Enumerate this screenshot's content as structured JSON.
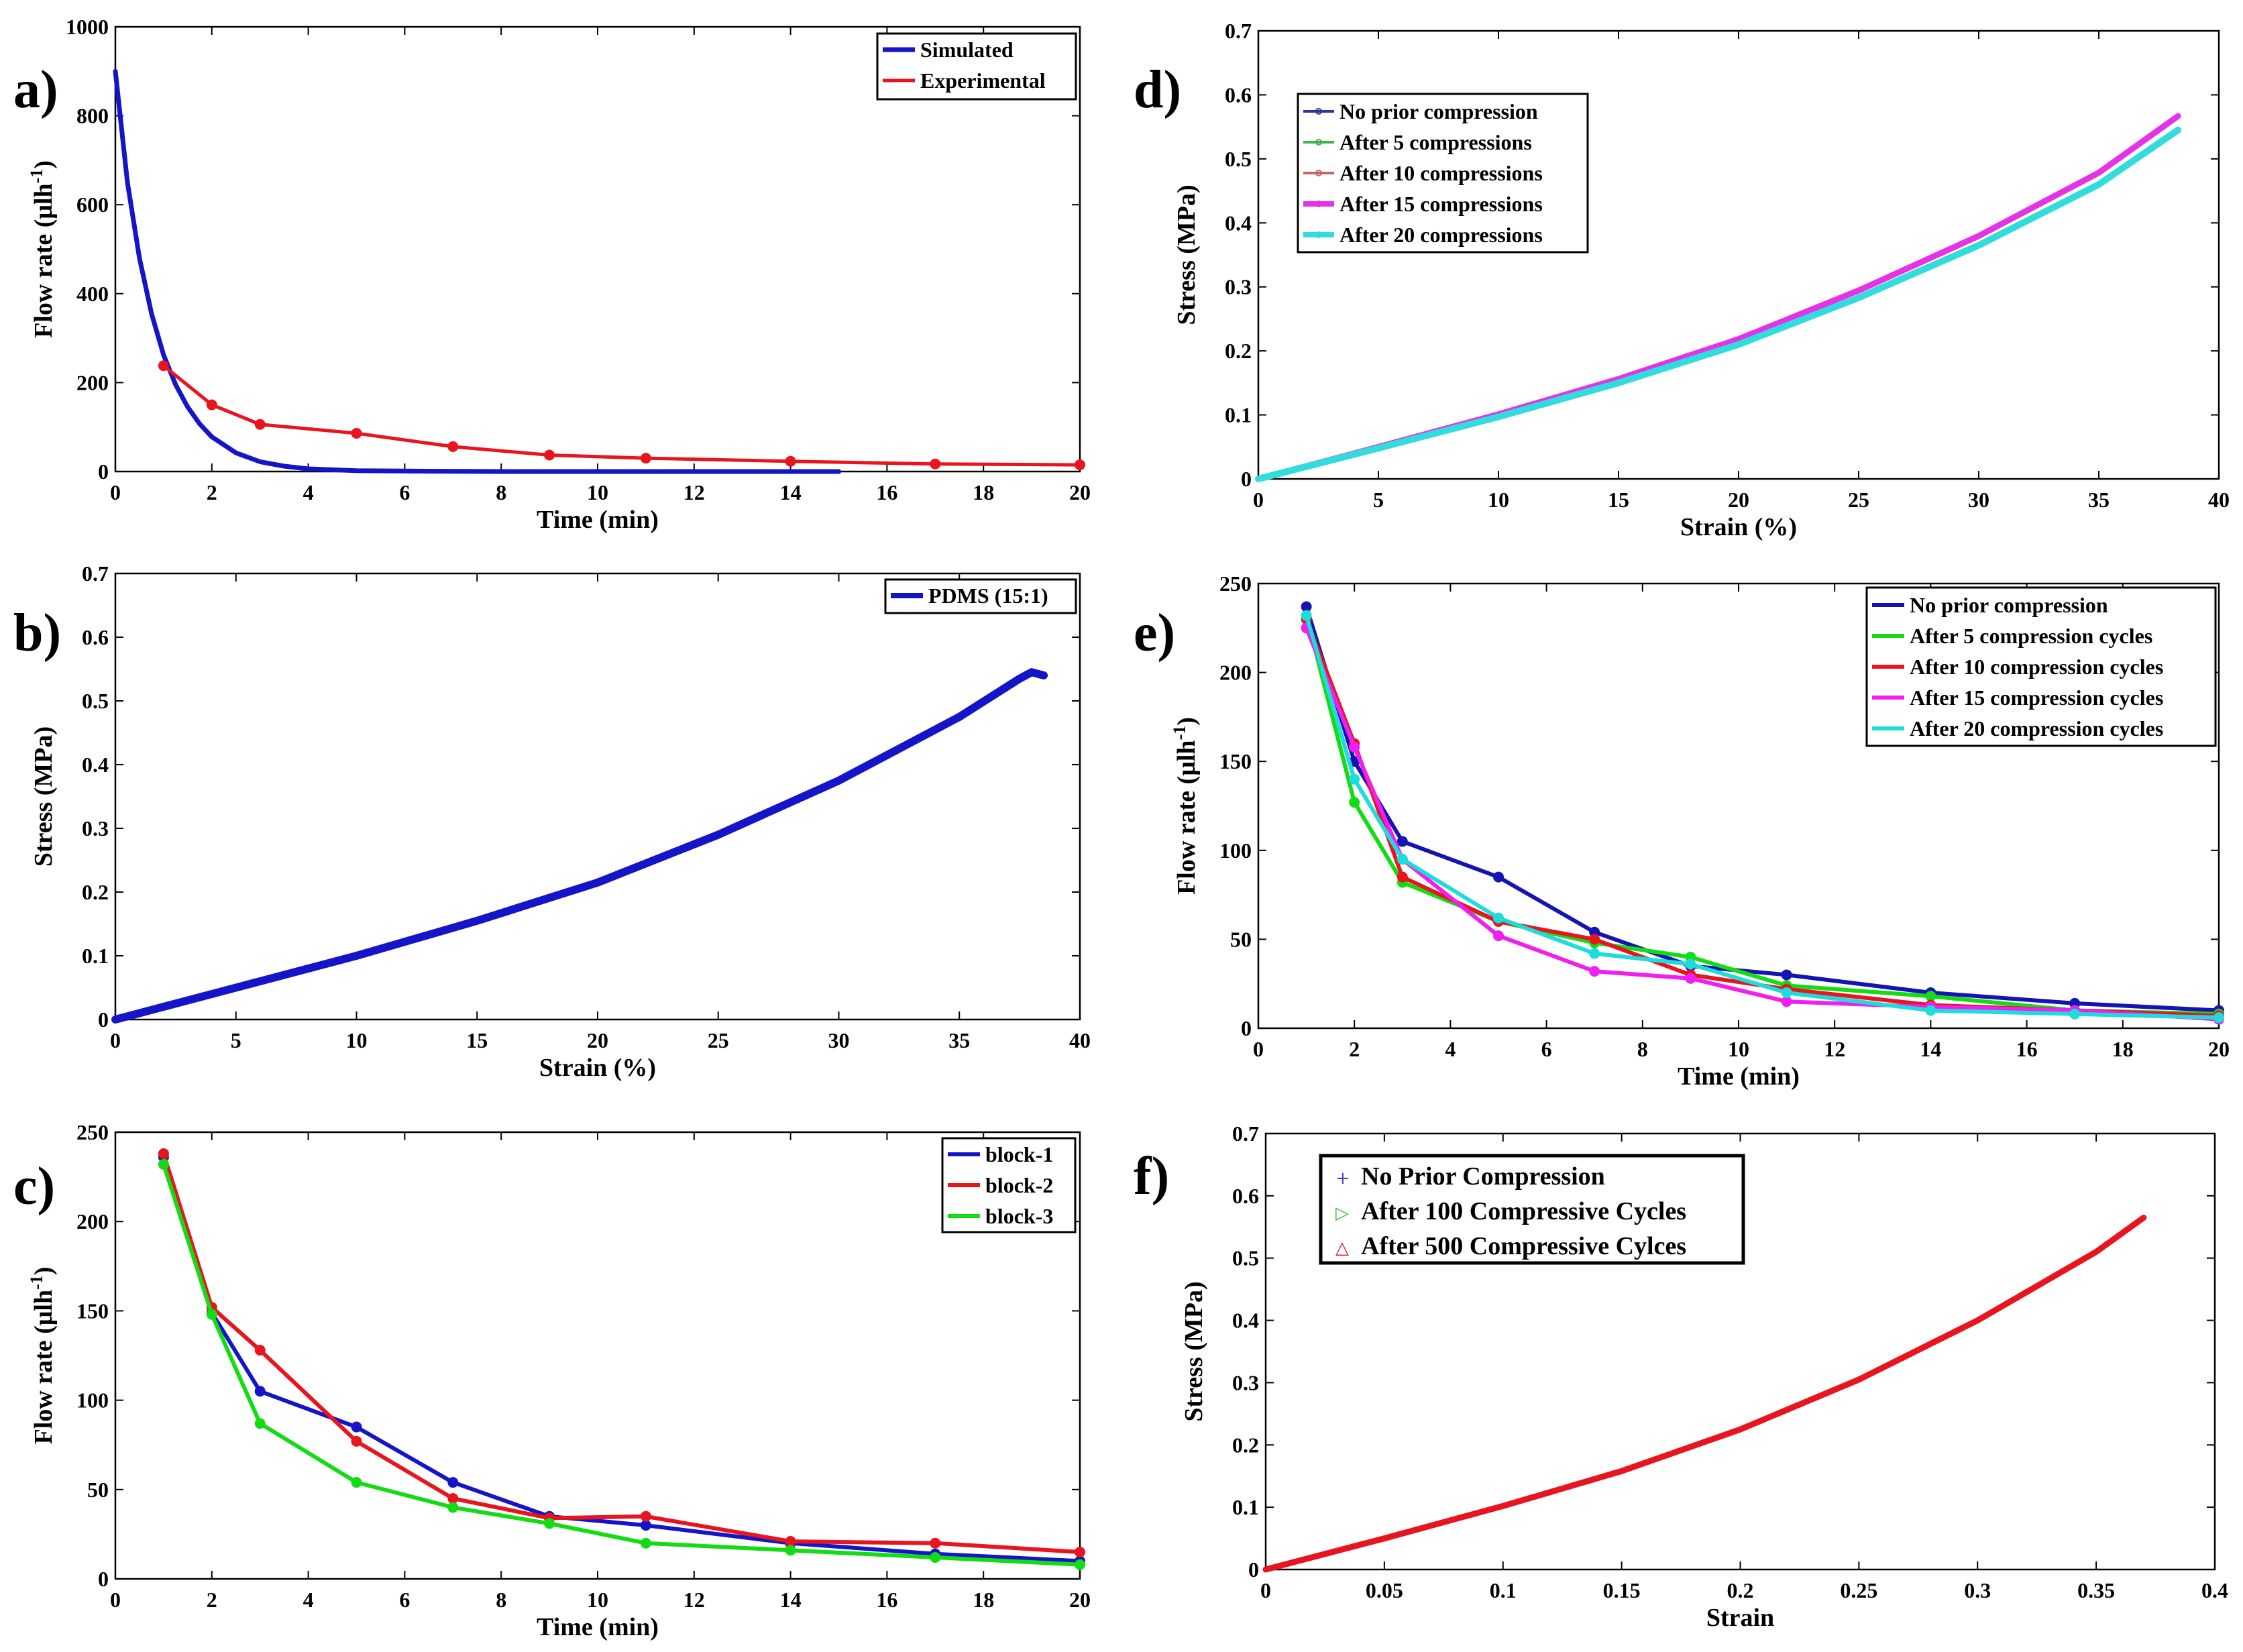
{
  "chart_data": [
    {
      "id": "a",
      "panel_label": "a)",
      "type": "line",
      "xlabel": "Time (min)",
      "ylabel": "Flow rate (μlh",
      "ylabel_sup": "-1",
      "ylabel_close": ")",
      "xlim": [
        0,
        20
      ],
      "ylim": [
        0,
        1000
      ],
      "xticks": [
        0,
        2,
        4,
        6,
        8,
        10,
        12,
        14,
        16,
        18,
        20
      ],
      "yticks": [
        0,
        200,
        400,
        600,
        800,
        1000
      ],
      "legend_position": "top-right",
      "series": [
        {
          "name": "Simulated",
          "color": "#1414c8",
          "width": 7,
          "markers": false,
          "points": [
            [
              0,
              900
            ],
            [
              0.25,
              650
            ],
            [
              0.5,
              480
            ],
            [
              0.75,
              355
            ],
            [
              1,
              262
            ],
            [
              1.25,
              195
            ],
            [
              1.5,
              145
            ],
            [
              1.75,
              107
            ],
            [
              2,
              78
            ],
            [
              2.5,
              42
            ],
            [
              3,
              22
            ],
            [
              3.5,
              12
            ],
            [
              4,
              6
            ],
            [
              5,
              2
            ],
            [
              6,
              1
            ],
            [
              8,
              0
            ],
            [
              10,
              0
            ],
            [
              12,
              0
            ],
            [
              15,
              0
            ]
          ]
        },
        {
          "name": "Experimental",
          "color": "#e8141e",
          "width": 5,
          "markers": true,
          "points": [
            [
              1,
              238
            ],
            [
              2,
              150
            ],
            [
              3,
              106
            ],
            [
              5,
              86
            ],
            [
              7,
              56
            ],
            [
              9,
              37
            ],
            [
              11,
              30
            ],
            [
              14,
              23
            ],
            [
              17,
              17
            ],
            [
              20,
              15
            ]
          ]
        }
      ]
    },
    {
      "id": "b",
      "panel_label": "b)",
      "type": "line",
      "xlabel": "Strain (%)",
      "ylabel": "Stress (MPa)",
      "xlim": [
        0,
        40
      ],
      "ylim": [
        0,
        0.7
      ],
      "xticks": [
        0,
        5,
        10,
        15,
        20,
        25,
        30,
        35,
        40
      ],
      "yticks": [
        0,
        0.1,
        0.2,
        0.3,
        0.4,
        0.5,
        0.6,
        0.7
      ],
      "legend_position": "top-right",
      "series": [
        {
          "name": "PDMS (15:1)",
          "color": "#1414c8",
          "width": 12,
          "markers": false,
          "points": [
            [
              0,
              0
            ],
            [
              5,
              0.05
            ],
            [
              10,
              0.1
            ],
            [
              15,
              0.155
            ],
            [
              20,
              0.215
            ],
            [
              25,
              0.29
            ],
            [
              30,
              0.375
            ],
            [
              35,
              0.475
            ],
            [
              37.5,
              0.535
            ],
            [
              38,
              0.545
            ],
            [
              38.5,
              0.54
            ]
          ]
        }
      ]
    },
    {
      "id": "c",
      "panel_label": "c)",
      "type": "line",
      "xlabel": "Time (min)",
      "ylabel": "Flow rate (μlh",
      "ylabel_sup": "-1",
      "ylabel_close": ")",
      "xlim": [
        0,
        20
      ],
      "ylim": [
        0,
        250
      ],
      "xticks": [
        0,
        2,
        4,
        6,
        8,
        10,
        12,
        14,
        16,
        18,
        20
      ],
      "yticks": [
        0,
        50,
        100,
        150,
        200,
        250
      ],
      "legend_position": "top-right",
      "series": [
        {
          "name": "block-1",
          "color": "#1414c8",
          "width": 6,
          "markers": true,
          "points": [
            [
              1,
              236
            ],
            [
              2,
              149
            ],
            [
              3,
              105
            ],
            [
              5,
              85
            ],
            [
              7,
              54
            ],
            [
              9,
              35
            ],
            [
              11,
              30
            ],
            [
              14,
              20
            ],
            [
              17,
              14
            ],
            [
              20,
              10
            ]
          ]
        },
        {
          "name": "block-2",
          "color": "#e8141e",
          "width": 6,
          "markers": true,
          "points": [
            [
              1,
              238
            ],
            [
              2,
              152
            ],
            [
              3,
              128
            ],
            [
              5,
              77
            ],
            [
              7,
              45
            ],
            [
              9,
              34
            ],
            [
              11,
              35
            ],
            [
              14,
              21
            ],
            [
              17,
              20
            ],
            [
              20,
              15
            ]
          ]
        },
        {
          "name": "block-3",
          "color": "#14dc14",
          "width": 6,
          "markers": true,
          "points": [
            [
              1,
              232
            ],
            [
              2,
              148
            ],
            [
              3,
              87
            ],
            [
              5,
              54
            ],
            [
              7,
              40
            ],
            [
              9,
              31
            ],
            [
              11,
              20
            ],
            [
              14,
              16
            ],
            [
              17,
              12
            ],
            [
              20,
              8
            ]
          ]
        }
      ]
    },
    {
      "id": "d",
      "panel_label": "d)",
      "type": "line",
      "xlabel": "Strain (%)",
      "ylabel": "Stress (MPa)",
      "xlim": [
        0,
        40
      ],
      "ylim": [
        0,
        0.7
      ],
      "xticks": [
        0,
        5,
        10,
        15,
        20,
        25,
        30,
        35,
        40
      ],
      "yticks": [
        0,
        0.1,
        0.2,
        0.3,
        0.4,
        0.5,
        0.6,
        0.7
      ],
      "legend_position": "top-left",
      "series": [
        {
          "name": "No prior compression",
          "color": "#3232a0",
          "width": 3,
          "markers": false,
          "scale": 1.0
        },
        {
          "name": "After 5 compressions",
          "color": "#3cb44b",
          "width": 3,
          "markers": false,
          "scale": 1.0
        },
        {
          "name": "After 10 compressions",
          "color": "#c86464",
          "width": 3,
          "markers": false,
          "scale": 1.0
        },
        {
          "name": "After 15 compressions",
          "color": "#e632e6",
          "width": 9,
          "markers": false,
          "scale": 1.04
        },
        {
          "name": "After 20 compressions",
          "color": "#32dcdc",
          "width": 10,
          "markers": false,
          "scale": 1.0
        }
      ],
      "curve_points": [
        [
          0,
          0
        ],
        [
          5,
          0.048
        ],
        [
          10,
          0.097
        ],
        [
          15,
          0.15
        ],
        [
          20,
          0.21
        ],
        [
          25,
          0.283
        ],
        [
          30,
          0.365
        ],
        [
          35,
          0.46
        ],
        [
          38.3,
          0.545
        ]
      ]
    },
    {
      "id": "e",
      "panel_label": "e)",
      "type": "line",
      "xlabel": "Time (min)",
      "ylabel": "Flow rate (μlh",
      "ylabel_sup": "-1",
      "ylabel_close": ")",
      "xlim": [
        0,
        20
      ],
      "ylim": [
        0,
        250
      ],
      "xticks": [
        0,
        2,
        4,
        6,
        8,
        10,
        12,
        14,
        16,
        18,
        20
      ],
      "yticks": [
        0,
        50,
        100,
        150,
        200,
        250
      ],
      "legend_position": "top-right",
      "series": [
        {
          "name": "No prior compression",
          "color": "#1414b4",
          "width": 6,
          "markers": true,
          "points": [
            [
              1,
              237
            ],
            [
              2,
              150
            ],
            [
              3,
              105
            ],
            [
              5,
              85
            ],
            [
              7,
              54
            ],
            [
              9,
              35
            ],
            [
              11,
              30
            ],
            [
              14,
              20
            ],
            [
              17,
              14
            ],
            [
              20,
              10
            ]
          ]
        },
        {
          "name": "After 5 compression cycles",
          "color": "#14dc14",
          "width": 6,
          "markers": true,
          "points": [
            [
              1,
              232
            ],
            [
              2,
              127
            ],
            [
              3,
              82
            ],
            [
              5,
              60
            ],
            [
              7,
              48
            ],
            [
              9,
              40
            ],
            [
              11,
              24
            ],
            [
              14,
              18
            ],
            [
              17,
              10
            ],
            [
              20,
              8
            ]
          ]
        },
        {
          "name": "After 10 compression cycles",
          "color": "#e8141e",
          "width": 6,
          "markers": true,
          "points": [
            [
              1,
              230
            ],
            [
              2,
              160
            ],
            [
              3,
              85
            ],
            [
              5,
              60
            ],
            [
              7,
              50
            ],
            [
              9,
              30
            ],
            [
              11,
              22
            ],
            [
              14,
              13
            ],
            [
              17,
              10
            ],
            [
              20,
              7
            ]
          ]
        },
        {
          "name": "After 15 compression cycles",
          "color": "#f01ef0",
          "width": 6,
          "markers": true,
          "points": [
            [
              1,
              225
            ],
            [
              2,
              158
            ],
            [
              3,
              95
            ],
            [
              5,
              52
            ],
            [
              7,
              32
            ],
            [
              9,
              28
            ],
            [
              11,
              15
            ],
            [
              14,
              12
            ],
            [
              17,
              10
            ],
            [
              20,
              5
            ]
          ]
        },
        {
          "name": "After 20 compression cycles",
          "color": "#1edcdc",
          "width": 6,
          "markers": true,
          "points": [
            [
              1,
              232
            ],
            [
              2,
              140
            ],
            [
              3,
              95
            ],
            [
              5,
              62
            ],
            [
              7,
              42
            ],
            [
              9,
              36
            ],
            [
              11,
              20
            ],
            [
              14,
              10
            ],
            [
              17,
              8
            ],
            [
              20,
              6
            ]
          ]
        }
      ]
    },
    {
      "id": "f",
      "panel_label": "f)",
      "type": "line",
      "xlabel": "Strain",
      "ylabel": "Stress (MPa)",
      "xlim": [
        0,
        0.4
      ],
      "ylim": [
        0,
        0.7
      ],
      "xticks": [
        0,
        0.05,
        0.1,
        0.15,
        0.2,
        0.25,
        0.3,
        0.35,
        0.4
      ],
      "yticks": [
        0,
        0.1,
        0.2,
        0.3,
        0.4,
        0.5,
        0.6,
        0.7
      ],
      "legend_position": "top-left",
      "series": [
        {
          "name": "No Prior Compression",
          "color": "#4646c8",
          "width": 2,
          "markers": false,
          "legend_marker": "+"
        },
        {
          "name": "After 100 Compressive Cycles",
          "color": "#3cb43c",
          "width": 2,
          "markers": false,
          "legend_marker": "▷"
        },
        {
          "name": "After 500 Compressive Cylces",
          "color": "#e8141e",
          "width": 9,
          "markers": false,
          "legend_marker": "△"
        }
      ],
      "curve_points": [
        [
          0,
          0
        ],
        [
          0.05,
          0.05
        ],
        [
          0.1,
          0.102
        ],
        [
          0.15,
          0.158
        ],
        [
          0.2,
          0.225
        ],
        [
          0.25,
          0.305
        ],
        [
          0.3,
          0.4
        ],
        [
          0.35,
          0.51
        ],
        [
          0.37,
          0.565
        ]
      ]
    }
  ]
}
